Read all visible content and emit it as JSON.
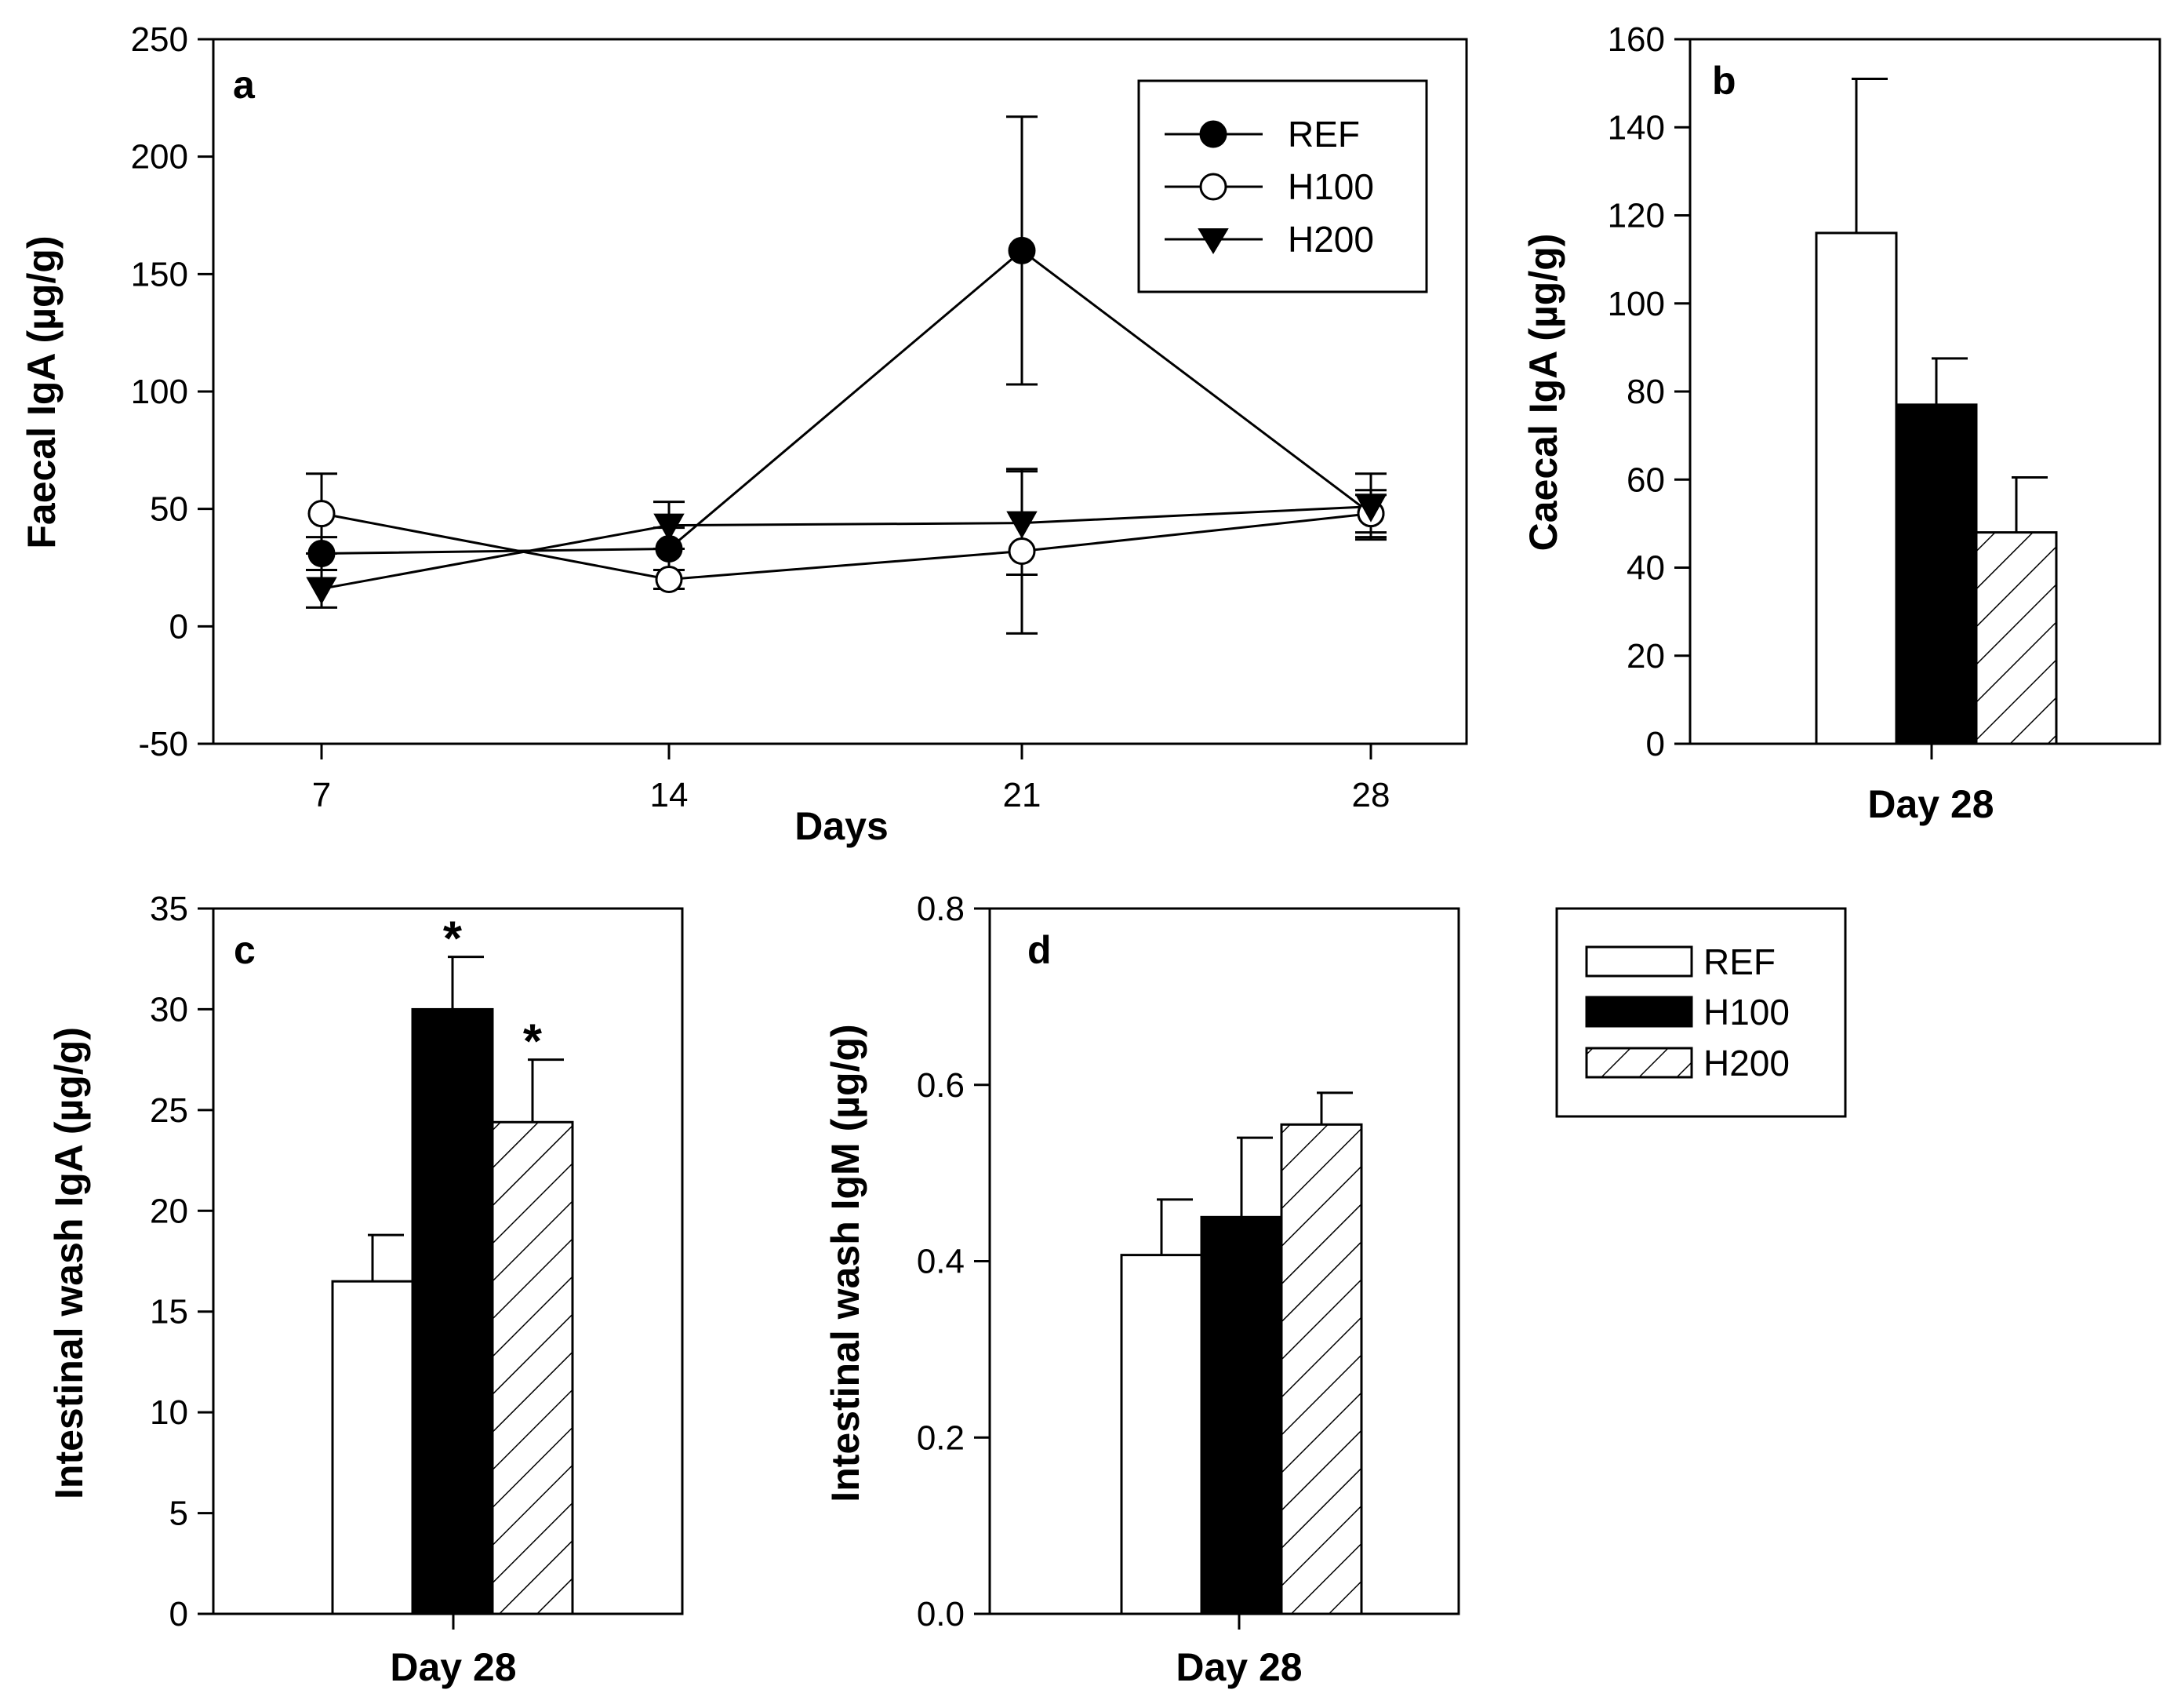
{
  "figure": {
    "legend_bars": [
      {
        "label": "REF",
        "fill": "white"
      },
      {
        "label": "H100",
        "fill": "black"
      },
      {
        "label": "H200",
        "fill": "hatch"
      }
    ]
  },
  "chart_data": [
    {
      "id": "a",
      "type": "line",
      "panel_label": "a",
      "xlabel": "Days",
      "ylabel": "Faecal IgA (µg/g)",
      "x": [
        7,
        14,
        21,
        28
      ],
      "ylim": [
        -50,
        250
      ],
      "yticks": [
        -50,
        0,
        50,
        100,
        150,
        200,
        250
      ],
      "legend_position": "top-right",
      "series": [
        {
          "name": "REF",
          "marker": "filled-circle",
          "values": [
            31,
            33,
            160,
            48
          ],
          "errors": [
            7,
            9,
            57,
            8
          ]
        },
        {
          "name": "H100",
          "marker": "open-circle",
          "values": [
            48,
            20,
            32,
            48
          ],
          "errors": [
            17,
            4,
            35,
            10
          ]
        },
        {
          "name": "H200",
          "marker": "filled-triangle-down",
          "values": [
            16,
            43,
            44,
            51
          ],
          "errors": [
            8,
            10,
            22,
            14
          ]
        }
      ]
    },
    {
      "id": "b",
      "type": "bar",
      "panel_label": "b",
      "xlabel": "Day 28",
      "ylabel": "Caecal IgA (µg/g)",
      "ylim": [
        0,
        160
      ],
      "yticks": [
        0,
        20,
        40,
        60,
        80,
        100,
        120,
        140,
        160
      ],
      "series": [
        {
          "name": "REF",
          "value": 116,
          "error": 35,
          "sig": ""
        },
        {
          "name": "H100",
          "value": 77,
          "error": 10.5,
          "sig": ""
        },
        {
          "name": "H200",
          "value": 48,
          "error": 12.5,
          "sig": ""
        }
      ]
    },
    {
      "id": "c",
      "type": "bar",
      "panel_label": "c",
      "xlabel": "Day 28",
      "ylabel": "Intestinal wash IgA (µg/g)",
      "ylim": [
        0,
        35
      ],
      "yticks": [
        0,
        5,
        10,
        15,
        20,
        25,
        30,
        35
      ],
      "series": [
        {
          "name": "REF",
          "value": 16.5,
          "error": 2.3,
          "sig": ""
        },
        {
          "name": "H100",
          "value": 30,
          "error": 2.6,
          "sig": "*"
        },
        {
          "name": "H200",
          "value": 24.4,
          "error": 3.1,
          "sig": "*"
        }
      ]
    },
    {
      "id": "d",
      "type": "bar",
      "panel_label": "d",
      "xlabel": "Day 28",
      "ylabel": "Intestinal wash IgM (µg/g)",
      "ylim": [
        0,
        0.8
      ],
      "yticks": [
        "0.0",
        "0.2",
        "0.4",
        "0.6",
        "0.8"
      ],
      "series": [
        {
          "name": "REF",
          "value": 0.407,
          "error": 0.063,
          "sig": ""
        },
        {
          "name": "H100",
          "value": 0.45,
          "error": 0.09,
          "sig": ""
        },
        {
          "name": "H200",
          "value": 0.555,
          "error": 0.036,
          "sig": ""
        }
      ]
    }
  ]
}
